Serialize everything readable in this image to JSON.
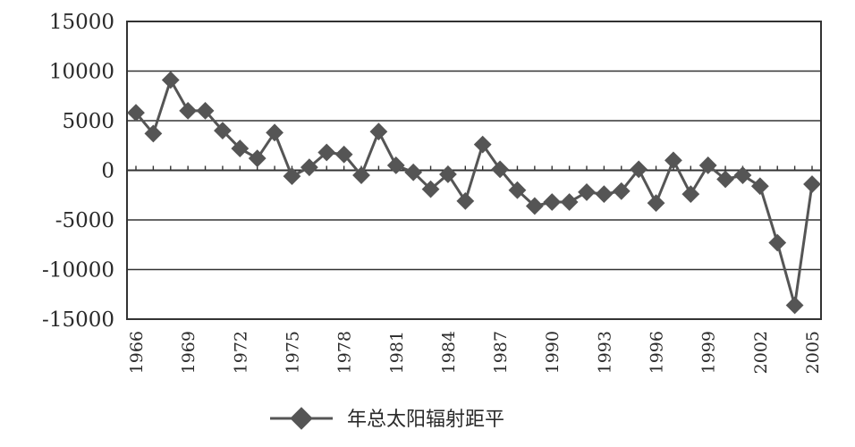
{
  "chart_data": {
    "type": "line",
    "x": [
      1966,
      1967,
      1968,
      1969,
      1970,
      1971,
      1972,
      1973,
      1974,
      1975,
      1976,
      1977,
      1978,
      1979,
      1980,
      1981,
      1982,
      1983,
      1984,
      1985,
      1986,
      1987,
      1988,
      1989,
      1990,
      1991,
      1992,
      1993,
      1994,
      1995,
      1996,
      1997,
      1998,
      1999,
      2000,
      2001,
      2002,
      2003,
      2004,
      2005
    ],
    "series": [
      {
        "name": "年总太阳辐射距平",
        "values": [
          5800,
          3700,
          9100,
          6000,
          6000,
          4000,
          2200,
          1200,
          3800,
          -600,
          300,
          1800,
          1600,
          -500,
          3900,
          500,
          -200,
          -1900,
          -400,
          -3100,
          2600,
          100,
          -2000,
          -3600,
          -3200,
          -3200,
          -2200,
          -2400,
          -2100,
          100,
          -3300,
          1000,
          -2400,
          500,
          -900,
          -500,
          -1600,
          -7300,
          -13600,
          -1400
        ]
      }
    ],
    "ylim": [
      -15000,
      15000
    ],
    "yticks": [
      "15000",
      "10000",
      "5000",
      "0",
      "-5000",
      "-10000",
      "-15000"
    ],
    "xticks": [
      "1966",
      "1969",
      "1972",
      "1975",
      "1978",
      "1981",
      "1984",
      "1987",
      "1990",
      "1993",
      "1996",
      "1999",
      "2002",
      "2005"
    ],
    "grid": true,
    "legend": "bottom",
    "line_color": "#555555"
  }
}
